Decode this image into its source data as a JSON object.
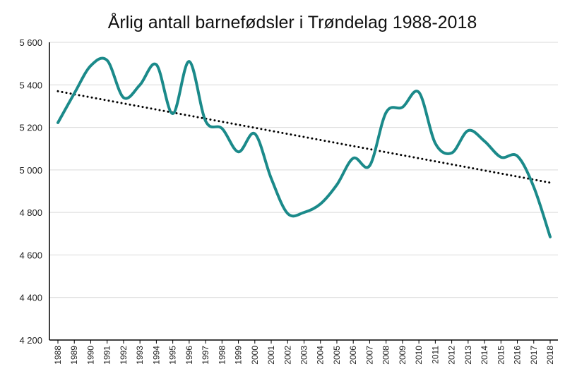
{
  "chart_data": {
    "type": "line",
    "title": "Årlig antall barnefødsler i Trøndelag 1988-2018",
    "xlabel": "",
    "ylabel": "",
    "ylim": [
      4200,
      5600
    ],
    "yticks": [
      4200,
      4400,
      4600,
      4800,
      5000,
      5200,
      5400,
      5600
    ],
    "ytick_labels": [
      "4 200",
      "4 400",
      "4 600",
      "4 800",
      "5 000",
      "5 200",
      "5 400",
      "5 600"
    ],
    "grid": "horizontal",
    "legend": "none",
    "categories": [
      "1988",
      "1989",
      "1990",
      "1991",
      "1992",
      "1993",
      "1994",
      "1995",
      "1996",
      "1997",
      "1998",
      "1999",
      "2000",
      "2001",
      "2002",
      "2003",
      "2004",
      "2005",
      "2006",
      "2007",
      "2008",
      "2009",
      "2010",
      "2011",
      "2012",
      "2013",
      "2014",
      "2015",
      "2016",
      "2017",
      "2018"
    ],
    "series": [
      {
        "values": [
          5222,
          5360,
          5490,
          5515,
          5340,
          5400,
          5495,
          5265,
          5510,
          5230,
          5195,
          5085,
          5170,
          4960,
          4795,
          4800,
          4840,
          4930,
          5055,
          5020,
          5270,
          5295,
          5365,
          5125,
          5080,
          5185,
          5135,
          5060,
          5065,
          4920,
          4685
        ],
        "color": "#1b8a8a",
        "style": "smooth"
      }
    ],
    "trendline": {
      "start": 5370,
      "end": 4940,
      "color": "#000000",
      "style": "dotted"
    }
  }
}
